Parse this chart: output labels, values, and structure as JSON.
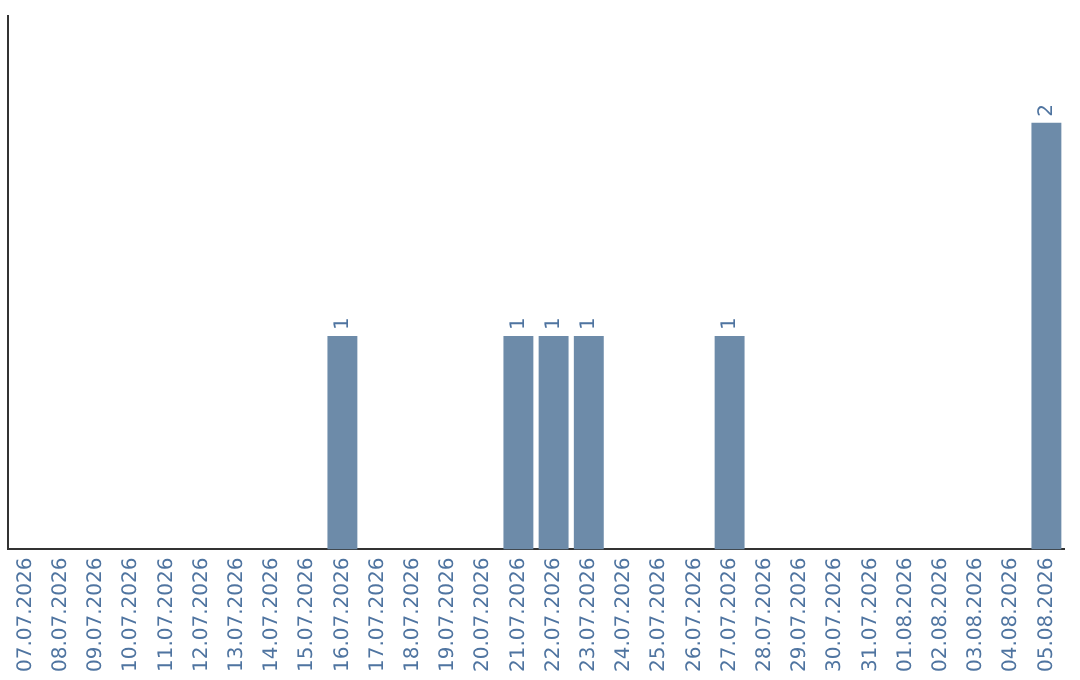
{
  "chart_data": {
    "type": "bar",
    "categories": [
      "07.07.2026",
      "08.07.2026",
      "09.07.2026",
      "10.07.2026",
      "11.07.2026",
      "12.07.2026",
      "13.07.2026",
      "14.07.2026",
      "15.07.2026",
      "16.07.2026",
      "17.07.2026",
      "18.07.2026",
      "19.07.2026",
      "20.07.2026",
      "21.07.2026",
      "22.07.2026",
      "23.07.2026",
      "24.07.2026",
      "25.07.2026",
      "26.07.2026",
      "27.07.2026",
      "28.07.2026",
      "29.07.2026",
      "30.07.2026",
      "31.07.2026",
      "01.08.2026",
      "02.08.2026",
      "03.08.2026",
      "04.08.2026",
      "05.08.2026"
    ],
    "values": [
      0,
      0,
      0,
      0,
      0,
      0,
      0,
      0,
      0,
      1,
      0,
      0,
      0,
      0,
      1,
      1,
      1,
      0,
      0,
      0,
      1,
      0,
      0,
      0,
      0,
      0,
      0,
      0,
      0,
      2
    ],
    "value_labels": [
      null,
      null,
      null,
      null,
      null,
      null,
      null,
      null,
      null,
      "1",
      null,
      null,
      null,
      null,
      "1",
      "1",
      "1",
      null,
      null,
      null,
      "1",
      null,
      null,
      null,
      null,
      null,
      null,
      null,
      null,
      "2"
    ],
    "color": "#6d8ba9",
    "grid": false,
    "legend": false,
    "tick_labels": "x"
  }
}
